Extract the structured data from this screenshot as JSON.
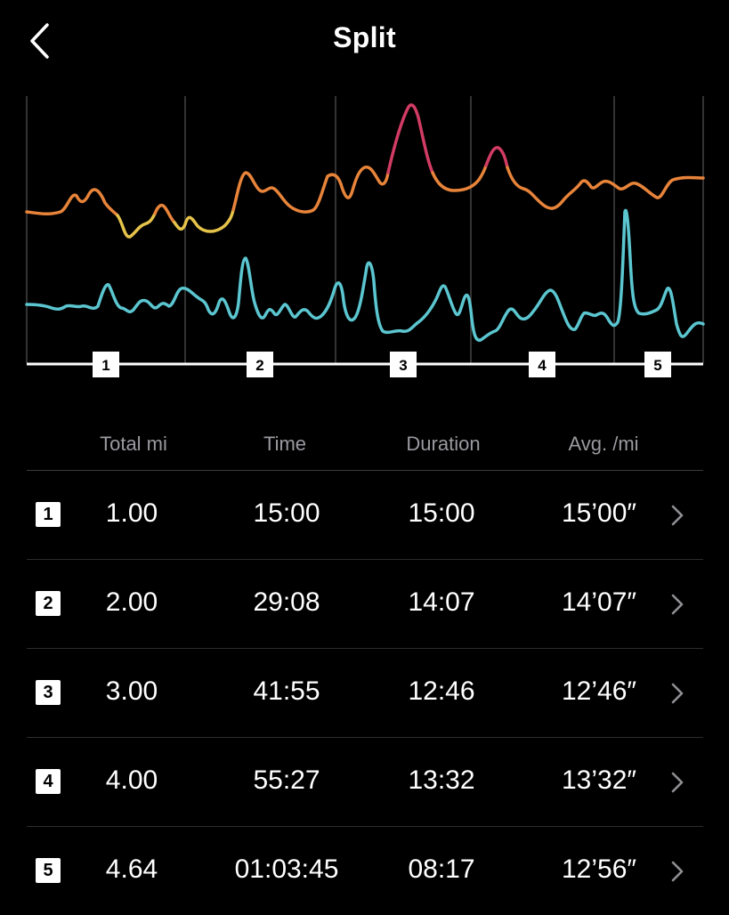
{
  "header": {
    "title": "Split",
    "back_icon": "chevron-left-icon"
  },
  "chart": {
    "lap_labels": [
      "1",
      "2",
      "3",
      "4",
      "5"
    ],
    "colors": {
      "pace_orange": "#E8843A",
      "pace_yellow": "#E6C34A",
      "pace_pink": "#D23C64",
      "heart_rate_cyan": "#5BC6D0",
      "baseline": "#FFFFFF",
      "divider": "#444444"
    }
  },
  "table": {
    "headers": [
      "Total mi",
      "Time",
      "Duration",
      "Avg. /mi"
    ],
    "rows": [
      {
        "lap": "1",
        "total": "1.00",
        "time": "15:00",
        "duration": "15:00",
        "avg": "15’00″"
      },
      {
        "lap": "2",
        "total": "2.00",
        "time": "29:08",
        "duration": "14:07",
        "avg": "14’07″"
      },
      {
        "lap": "3",
        "total": "3.00",
        "time": "41:55",
        "duration": "12:46",
        "avg": "12’46″"
      },
      {
        "lap": "4",
        "total": "4.00",
        "time": "55:27",
        "duration": "13:32",
        "avg": "13’32″"
      },
      {
        "lap": "5",
        "total": "4.64",
        "time": "01:03:45",
        "duration": "08:17",
        "avg": "12’56″"
      }
    ],
    "row_icon": "chevron-right-icon"
  }
}
